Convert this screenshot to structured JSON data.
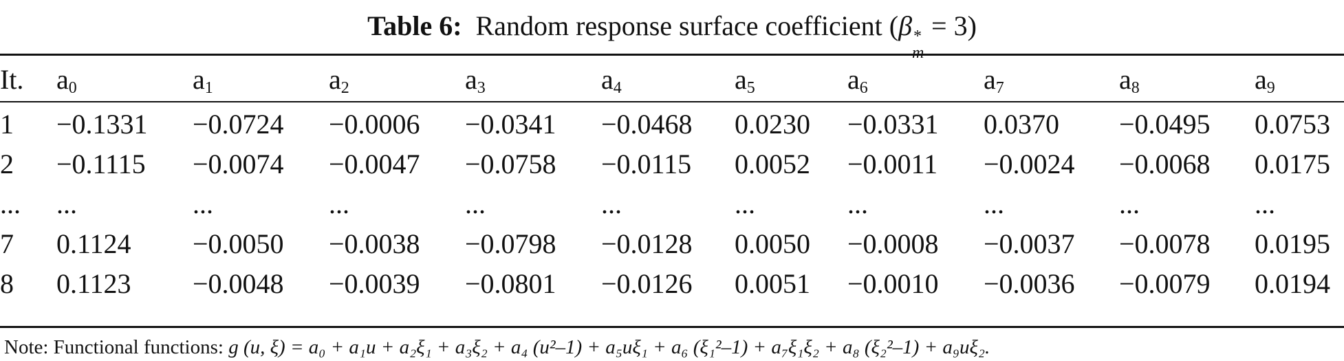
{
  "title": {
    "label": "Table 6:",
    "text": "Random response surface coefficient (",
    "beta": "β",
    "beta_sup": "*",
    "beta_sub": "m",
    "value": " = 3)"
  },
  "table": {
    "headers": [
      {
        "base": "It.",
        "sub": ""
      },
      {
        "base": "a",
        "sub": "0"
      },
      {
        "base": "a",
        "sub": "1"
      },
      {
        "base": "a",
        "sub": "2"
      },
      {
        "base": "a",
        "sub": "3"
      },
      {
        "base": "a",
        "sub": "4"
      },
      {
        "base": "a",
        "sub": "5"
      },
      {
        "base": "a",
        "sub": "6"
      },
      {
        "base": "a",
        "sub": "7"
      },
      {
        "base": "a",
        "sub": "8"
      },
      {
        "base": "a",
        "sub": "9"
      }
    ],
    "rows": [
      [
        "1",
        "−0.1331",
        "−0.0724",
        "−0.0006",
        "−0.0341",
        "−0.0468",
        "0.0230",
        "−0.0331",
        "0.0370",
        "−0.0495",
        "0.0753"
      ],
      [
        "2",
        "−0.1115",
        "−0.0074",
        "−0.0047",
        "−0.0758",
        "−0.0115",
        "0.0052",
        "−0.0011",
        "−0.0024",
        "−0.0068",
        "0.0175"
      ],
      [
        "...",
        "...",
        "...",
        "...",
        "...",
        "...",
        "...",
        "...",
        "...",
        "...",
        "..."
      ],
      [
        "7",
        "0.1124",
        "−0.0050",
        "−0.0038",
        "−0.0798",
        "−0.0128",
        "0.0050",
        "−0.0008",
        "−0.0037",
        "−0.0078",
        "0.0195"
      ],
      [
        "8",
        "0.1123",
        "−0.0048",
        "−0.0039",
        "−0.0801",
        "−0.0126",
        "0.0051",
        "−0.0010",
        "−0.0036",
        "−0.0079",
        "0.0194"
      ]
    ]
  },
  "note": {
    "prefix": "Note: Functional functions: ",
    "formula": "g (u, ξ) = a₀ + a₁u + a₂ξ₁ + a₃ξ₂ + a₄ (u²–1) + a₅uξ₁ + a₆ (ξ₁²–1) + a₇ξ₁ξ₂ + a₈ (ξ₂²–1) + a₉uξ₂."
  }
}
